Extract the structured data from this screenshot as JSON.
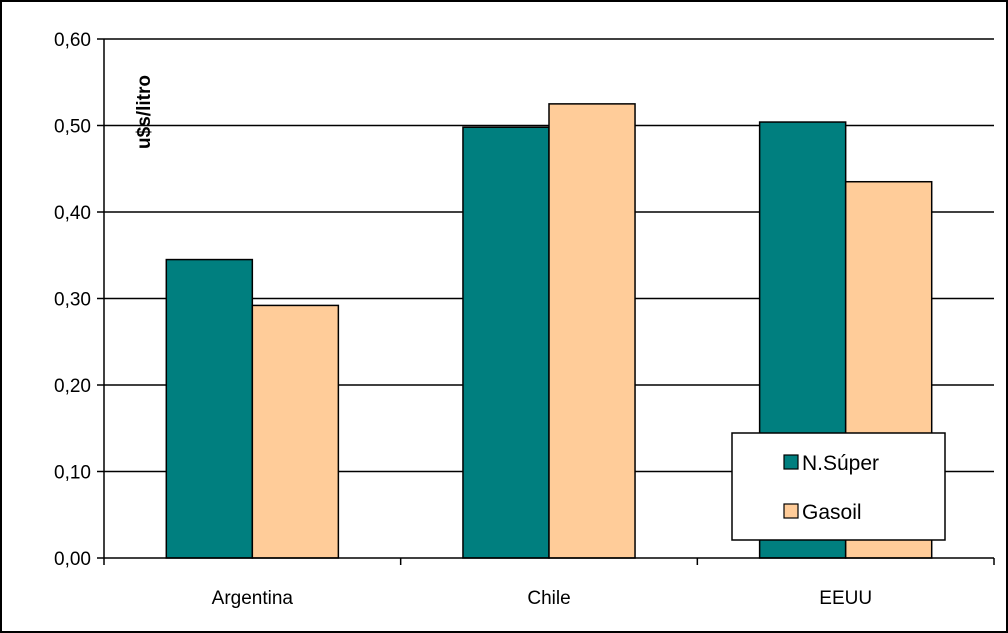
{
  "chart_data": {
    "type": "bar",
    "title": "",
    "xlabel": "",
    "ylabel": "u$s/litro",
    "categories": [
      "Argentina",
      "Chile",
      "EEUU"
    ],
    "series": [
      {
        "name": "N.Súper",
        "values": [
          0.345,
          0.498,
          0.504
        ],
        "color": "#007F7F"
      },
      {
        "name": "Gasoil",
        "values": [
          0.292,
          0.525,
          0.435
        ],
        "color": "#FFCC99"
      }
    ],
    "ylim": [
      0,
      0.6
    ],
    "yticks": [
      "0,00",
      "0,10",
      "0,20",
      "0,30",
      "0,40",
      "0,50",
      "0,60"
    ],
    "grid": true,
    "legend_position": "bottom-right"
  }
}
